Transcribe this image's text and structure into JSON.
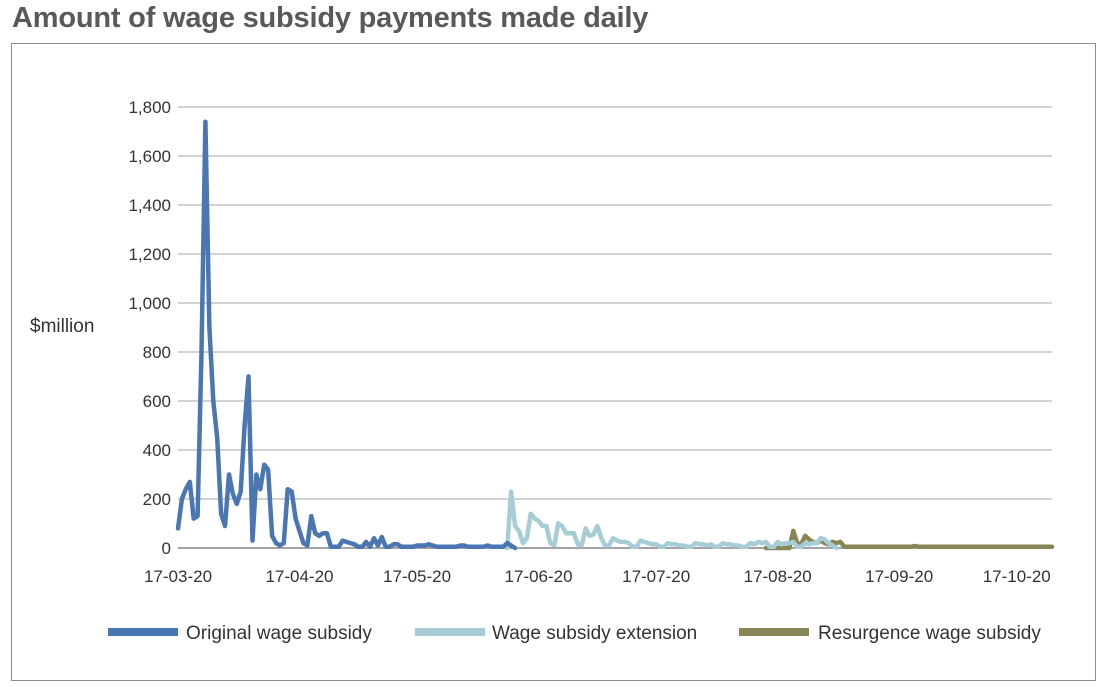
{
  "chart_data": {
    "type": "line",
    "title": "Amount of wage subsidy payments made daily",
    "ylabel": "$million",
    "xlabel": "",
    "ylim": [
      0,
      1800
    ],
    "yticks": [
      0,
      200,
      400,
      600,
      800,
      1000,
      1200,
      1400,
      1600,
      1800
    ],
    "ytick_labels": [
      "0",
      "200",
      "400",
      "600",
      "800",
      "1,000",
      "1,200",
      "1,400",
      "1,600",
      "1,800"
    ],
    "xlim": [
      "2020-03-17",
      "2020-10-26"
    ],
    "xticks": [
      "2020-03-17",
      "2020-04-17",
      "2020-05-17",
      "2020-06-17",
      "2020-07-17",
      "2020-08-17",
      "2020-09-17",
      "2020-10-17"
    ],
    "xtick_labels": [
      "17-03-20",
      "17-04-20",
      "17-05-20",
      "17-06-20",
      "17-07-20",
      "17-08-20",
      "17-09-20",
      "17-10-20"
    ],
    "grid": true,
    "legend_position": "bottom",
    "series": [
      {
        "name": "Original wage subsidy",
        "color": "#4a76b2",
        "points": [
          [
            "2020-03-17",
            80
          ],
          [
            "2020-03-18",
            200
          ],
          [
            "2020-03-19",
            240
          ],
          [
            "2020-03-20",
            270
          ],
          [
            "2020-03-21",
            120
          ],
          [
            "2020-03-22",
            130
          ],
          [
            "2020-03-23",
            800
          ],
          [
            "2020-03-24",
            1740
          ],
          [
            "2020-03-25",
            900
          ],
          [
            "2020-03-26",
            600
          ],
          [
            "2020-03-27",
            450
          ],
          [
            "2020-03-28",
            140
          ],
          [
            "2020-03-29",
            90
          ],
          [
            "2020-03-30",
            300
          ],
          [
            "2020-03-31",
            220
          ],
          [
            "2020-04-01",
            180
          ],
          [
            "2020-04-02",
            230
          ],
          [
            "2020-04-03",
            500
          ],
          [
            "2020-04-04",
            700
          ],
          [
            "2020-04-05",
            30
          ],
          [
            "2020-04-06",
            300
          ],
          [
            "2020-04-07",
            240
          ],
          [
            "2020-04-08",
            340
          ],
          [
            "2020-04-09",
            320
          ],
          [
            "2020-04-10",
            50
          ],
          [
            "2020-04-11",
            20
          ],
          [
            "2020-04-12",
            10
          ],
          [
            "2020-04-13",
            20
          ],
          [
            "2020-04-14",
            240
          ],
          [
            "2020-04-15",
            230
          ],
          [
            "2020-04-16",
            120
          ],
          [
            "2020-04-17",
            70
          ],
          [
            "2020-04-18",
            20
          ],
          [
            "2020-04-19",
            10
          ],
          [
            "2020-04-20",
            130
          ],
          [
            "2020-04-21",
            60
          ],
          [
            "2020-04-22",
            50
          ],
          [
            "2020-04-23",
            60
          ],
          [
            "2020-04-24",
            60
          ],
          [
            "2020-04-25",
            5
          ],
          [
            "2020-04-26",
            5
          ],
          [
            "2020-04-27",
            5
          ],
          [
            "2020-04-28",
            30
          ],
          [
            "2020-04-29",
            25
          ],
          [
            "2020-04-30",
            20
          ],
          [
            "2020-05-01",
            15
          ],
          [
            "2020-05-02",
            5
          ],
          [
            "2020-05-03",
            5
          ],
          [
            "2020-05-04",
            25
          ],
          [
            "2020-05-05",
            5
          ],
          [
            "2020-05-06",
            40
          ],
          [
            "2020-05-07",
            10
          ],
          [
            "2020-05-08",
            45
          ],
          [
            "2020-05-09",
            5
          ],
          [
            "2020-05-10",
            5
          ],
          [
            "2020-05-11",
            15
          ],
          [
            "2020-05-12",
            15
          ],
          [
            "2020-05-13",
            5
          ],
          [
            "2020-05-14",
            5
          ],
          [
            "2020-05-15",
            5
          ],
          [
            "2020-05-16",
            5
          ],
          [
            "2020-05-17",
            10
          ],
          [
            "2020-05-18",
            10
          ],
          [
            "2020-05-19",
            10
          ],
          [
            "2020-05-20",
            15
          ],
          [
            "2020-05-21",
            10
          ],
          [
            "2020-05-22",
            5
          ],
          [
            "2020-05-23",
            5
          ],
          [
            "2020-05-24",
            5
          ],
          [
            "2020-05-25",
            5
          ],
          [
            "2020-05-26",
            5
          ],
          [
            "2020-05-27",
            5
          ],
          [
            "2020-05-28",
            10
          ],
          [
            "2020-05-29",
            10
          ],
          [
            "2020-05-30",
            5
          ],
          [
            "2020-05-31",
            5
          ],
          [
            "2020-06-01",
            5
          ],
          [
            "2020-06-02",
            5
          ],
          [
            "2020-06-03",
            5
          ],
          [
            "2020-06-04",
            10
          ],
          [
            "2020-06-05",
            5
          ],
          [
            "2020-06-06",
            5
          ],
          [
            "2020-06-07",
            5
          ],
          [
            "2020-06-08",
            5
          ],
          [
            "2020-06-09",
            20
          ],
          [
            "2020-06-10",
            10
          ],
          [
            "2020-06-11",
            0
          ]
        ]
      },
      {
        "name": "Wage subsidy extension",
        "color": "#a6cdd6",
        "points": [
          [
            "2020-06-09",
            0
          ],
          [
            "2020-06-10",
            230
          ],
          [
            "2020-06-11",
            90
          ],
          [
            "2020-06-12",
            70
          ],
          [
            "2020-06-13",
            20
          ],
          [
            "2020-06-14",
            40
          ],
          [
            "2020-06-15",
            140
          ],
          [
            "2020-06-16",
            120
          ],
          [
            "2020-06-17",
            110
          ],
          [
            "2020-06-18",
            90
          ],
          [
            "2020-06-19",
            90
          ],
          [
            "2020-06-20",
            20
          ],
          [
            "2020-06-21",
            10
          ],
          [
            "2020-06-22",
            100
          ],
          [
            "2020-06-23",
            90
          ],
          [
            "2020-06-24",
            60
          ],
          [
            "2020-06-25",
            60
          ],
          [
            "2020-06-26",
            60
          ],
          [
            "2020-06-27",
            15
          ],
          [
            "2020-06-28",
            10
          ],
          [
            "2020-06-29",
            80
          ],
          [
            "2020-06-30",
            50
          ],
          [
            "2020-07-01",
            55
          ],
          [
            "2020-07-02",
            90
          ],
          [
            "2020-07-03",
            40
          ],
          [
            "2020-07-04",
            10
          ],
          [
            "2020-07-05",
            10
          ],
          [
            "2020-07-06",
            40
          ],
          [
            "2020-07-07",
            30
          ],
          [
            "2020-07-08",
            25
          ],
          [
            "2020-07-09",
            25
          ],
          [
            "2020-07-10",
            20
          ],
          [
            "2020-07-11",
            5
          ],
          [
            "2020-07-12",
            5
          ],
          [
            "2020-07-13",
            30
          ],
          [
            "2020-07-14",
            25
          ],
          [
            "2020-07-15",
            20
          ],
          [
            "2020-07-16",
            15
          ],
          [
            "2020-07-17",
            15
          ],
          [
            "2020-07-18",
            5
          ],
          [
            "2020-07-19",
            5
          ],
          [
            "2020-07-20",
            20
          ],
          [
            "2020-07-21",
            15
          ],
          [
            "2020-07-22",
            15
          ],
          [
            "2020-07-23",
            10
          ],
          [
            "2020-07-24",
            10
          ],
          [
            "2020-07-25",
            5
          ],
          [
            "2020-07-26",
            5
          ],
          [
            "2020-07-27",
            20
          ],
          [
            "2020-07-28",
            15
          ],
          [
            "2020-07-29",
            15
          ],
          [
            "2020-07-30",
            10
          ],
          [
            "2020-07-31",
            15
          ],
          [
            "2020-08-01",
            5
          ],
          [
            "2020-08-02",
            5
          ],
          [
            "2020-08-03",
            20
          ],
          [
            "2020-08-04",
            15
          ],
          [
            "2020-08-05",
            15
          ],
          [
            "2020-08-06",
            10
          ],
          [
            "2020-08-07",
            10
          ],
          [
            "2020-08-08",
            5
          ],
          [
            "2020-08-09",
            5
          ],
          [
            "2020-08-10",
            20
          ],
          [
            "2020-08-11",
            15
          ],
          [
            "2020-08-12",
            25
          ],
          [
            "2020-08-13",
            20
          ],
          [
            "2020-08-14",
            25
          ],
          [
            "2020-08-15",
            5
          ],
          [
            "2020-08-16",
            5
          ],
          [
            "2020-08-17",
            25
          ],
          [
            "2020-08-18",
            15
          ],
          [
            "2020-08-19",
            20
          ],
          [
            "2020-08-20",
            20
          ],
          [
            "2020-08-21",
            25
          ],
          [
            "2020-08-22",
            5
          ],
          [
            "2020-08-23",
            5
          ],
          [
            "2020-08-24",
            20
          ],
          [
            "2020-08-25",
            15
          ],
          [
            "2020-08-26",
            20
          ],
          [
            "2020-08-27",
            20
          ],
          [
            "2020-08-28",
            40
          ],
          [
            "2020-08-29",
            35
          ],
          [
            "2020-08-30",
            20
          ],
          [
            "2020-08-31",
            10
          ],
          [
            "2020-09-01",
            0
          ]
        ]
      },
      {
        "name": "Resurgence wage subsidy",
        "color": "#878654",
        "points": [
          [
            "2020-08-14",
            0
          ],
          [
            "2020-08-20",
            0
          ],
          [
            "2020-08-21",
            70
          ],
          [
            "2020-08-22",
            20
          ],
          [
            "2020-08-23",
            15
          ],
          [
            "2020-08-24",
            50
          ],
          [
            "2020-08-25",
            35
          ],
          [
            "2020-08-26",
            25
          ],
          [
            "2020-08-27",
            20
          ],
          [
            "2020-08-28",
            30
          ],
          [
            "2020-08-29",
            20
          ],
          [
            "2020-08-30",
            15
          ],
          [
            "2020-08-31",
            25
          ],
          [
            "2020-09-01",
            20
          ],
          [
            "2020-09-02",
            25
          ],
          [
            "2020-09-03",
            5
          ],
          [
            "2020-09-04",
            5
          ],
          [
            "2020-09-10",
            5
          ],
          [
            "2020-09-20",
            5
          ],
          [
            "2020-09-21",
            8
          ],
          [
            "2020-09-22",
            5
          ],
          [
            "2020-10-05",
            5
          ],
          [
            "2020-10-26",
            5
          ]
        ]
      }
    ]
  }
}
